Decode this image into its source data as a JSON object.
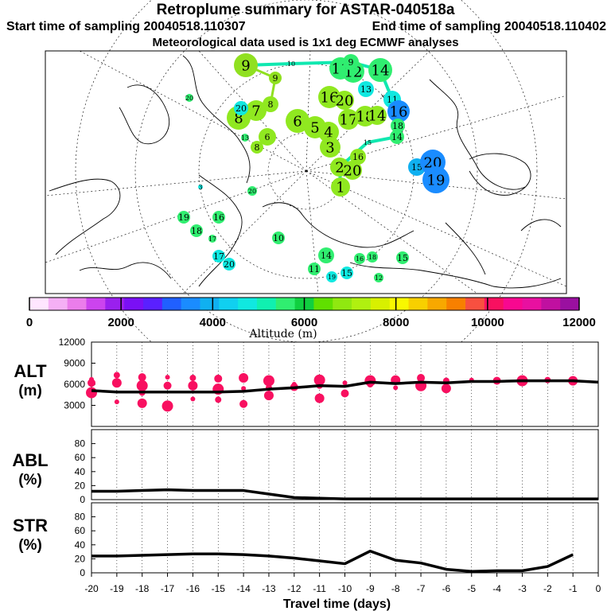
{
  "header": {
    "title": "Retroplume summary for ASTAR-040518a",
    "start": "Start time of sampling 20040518.110307",
    "end": "End time of sampling 20040518.110402",
    "met": "Meteorological data used is 1x1 deg ECMWF analyses"
  },
  "colorbar": {
    "label": "Altitude (m)",
    "ticks": [
      "0",
      "2000",
      "4000",
      "6000",
      "8000",
      "10000",
      "12000"
    ],
    "colors": [
      "#ffe6ff",
      "#f5b0f5",
      "#eb7deb",
      "#cc44ee",
      "#9a20ee",
      "#7a10f5",
      "#5a20ff",
      "#2060ff",
      "#1a8cff",
      "#10b0f0",
      "#10d0f0",
      "#10e8e0",
      "#10f0b0",
      "#30ee70",
      "#10d040",
      "#60e000",
      "#90e810",
      "#b0f010",
      "#d8f000",
      "#f8f800",
      "#f8d000",
      "#f8a800",
      "#f88000",
      "#f85040",
      "#f81060",
      "#f80890",
      "#e810a0",
      "#c010a0",
      "#9a10a0"
    ]
  },
  "map": {
    "markers": [
      {
        "n": "9",
        "c": "#90e020",
        "r": 15
      },
      {
        "n": "10",
        "c": "#ffffff",
        "r": 0
      },
      {
        "n": "9",
        "c": "#90e020",
        "r": 8
      },
      {
        "n": "11",
        "c": "#30ee70",
        "r": 14
      },
      {
        "n": "12",
        "c": "#30ee70",
        "r": 14
      },
      {
        "n": "9",
        "c": "#30ee70",
        "r": 10
      },
      {
        "n": "14",
        "c": "#30ee70",
        "r": 15
      },
      {
        "n": "13",
        "c": "#10e8e0",
        "r": 10
      },
      {
        "n": "16",
        "c": "#90e820",
        "r": 14
      },
      {
        "n": "20",
        "c": "#90e820",
        "r": 12
      },
      {
        "n": "11",
        "c": "#10e8e0",
        "r": 11
      },
      {
        "n": "16",
        "c": "#1a8cff",
        "r": 14
      },
      {
        "n": "8",
        "c": "#90e820",
        "r": 15
      },
      {
        "n": "7",
        "c": "#90e820",
        "r": 13
      },
      {
        "n": "8",
        "c": "#90e820",
        "r": 10
      },
      {
        "n": "6",
        "c": "#90e820",
        "r": 15
      },
      {
        "n": "5",
        "c": "#90e820",
        "r": 14
      },
      {
        "n": "4",
        "c": "#90e820",
        "r": 13
      },
      {
        "n": "17",
        "c": "#90e820",
        "r": 13
      },
      {
        "n": "18",
        "c": "#90e820",
        "r": 13
      },
      {
        "n": "14",
        "c": "#90e820",
        "r": 12
      },
      {
        "n": "18",
        "c": "#30ee70",
        "r": 9
      },
      {
        "n": "14",
        "c": "#30ee70",
        "r": 9
      },
      {
        "n": "6",
        "c": "#90e820",
        "r": 11
      },
      {
        "n": "8",
        "c": "#90e820",
        "r": 8
      },
      {
        "n": "3",
        "c": "#90e820",
        "r": 13
      },
      {
        "n": "15",
        "c": "#ffffff",
        "r": 0
      },
      {
        "n": "16",
        "c": "#90e820",
        "r": 10
      },
      {
        "n": "2",
        "c": "#90e820",
        "r": 12
      },
      {
        "n": "20",
        "c": "#90e820",
        "r": 12
      },
      {
        "n": "1",
        "c": "#90e820",
        "r": 12
      },
      {
        "n": "15",
        "c": "#10b0f0",
        "r": 11
      },
      {
        "n": "20",
        "c": "#1a8cff",
        "r": 16
      },
      {
        "n": "19",
        "c": "#1a8cff",
        "r": 17
      },
      {
        "n": "20",
        "c": "#30ee70",
        "r": 5
      },
      {
        "n": "3",
        "c": "#10e8e0",
        "r": 3
      },
      {
        "n": "20",
        "c": "#30ee70",
        "r": 6
      },
      {
        "n": "19",
        "c": "#30ee70",
        "r": 8
      },
      {
        "n": "18",
        "c": "#30ee70",
        "r": 8
      },
      {
        "n": "17",
        "c": "#30ee70",
        "r": 5
      },
      {
        "n": "16",
        "c": "#30ee70",
        "r": 8
      },
      {
        "n": "10",
        "c": "#30ee70",
        "r": 8
      },
      {
        "n": "17",
        "c": "#10e8e0",
        "r": 8
      },
      {
        "n": "20",
        "c": "#10e8e0",
        "r": 8
      },
      {
        "n": "14",
        "c": "#30ee70",
        "r": 10
      },
      {
        "n": "11",
        "c": "#30ee70",
        "r": 8
      },
      {
        "n": "19",
        "c": "#10e8e0",
        "r": 7
      },
      {
        "n": "16",
        "c": "#30ee70",
        "r": 7
      },
      {
        "n": "15",
        "c": "#10e8e0",
        "r": 8
      },
      {
        "n": "18",
        "c": "#30ee70",
        "r": 7
      },
      {
        "n": "15",
        "c": "#30ee70",
        "r": 8
      },
      {
        "n": "12",
        "c": "#30ee70",
        "r": 6
      },
      {
        "n": "20",
        "c": "#10e8e0",
        "r": 9
      },
      {
        "n": "13",
        "c": "#30ee70",
        "r": 5
      }
    ]
  },
  "chart_data": [
    {
      "type": "scatter+line",
      "panel": "ALT",
      "ylabel": "ALT (m)",
      "ylim": [
        0,
        12000
      ],
      "yticks": [
        "12000",
        "9000",
        "6000",
        "3000"
      ],
      "x": [
        -20,
        -19,
        -18,
        -17,
        -16,
        -15,
        -14,
        -13,
        -12,
        -11,
        -10,
        -9,
        -8,
        -7,
        -6,
        -5,
        -4,
        -3,
        -2,
        -1,
        0
      ],
      "line": [
        5100,
        4900,
        4900,
        4900,
        4900,
        4900,
        5000,
        5300,
        5500,
        5800,
        5700,
        6300,
        6100,
        6300,
        6200,
        6400,
        6400,
        6500,
        6500,
        6500,
        6300
      ],
      "points": [
        {
          "x": -20,
          "y": 6700
        },
        {
          "x": -20,
          "y": 6200
        },
        {
          "x": -20,
          "y": 4800
        },
        {
          "x": -19,
          "y": 7300
        },
        {
          "x": -19,
          "y": 6200
        },
        {
          "x": -19,
          "y": 3500
        },
        {
          "x": -18,
          "y": 7000
        },
        {
          "x": -18,
          "y": 5800
        },
        {
          "x": -18,
          "y": 4800
        },
        {
          "x": -18,
          "y": 3300
        },
        {
          "x": -17,
          "y": 7000
        },
        {
          "x": -17,
          "y": 5800
        },
        {
          "x": -17,
          "y": 2900
        },
        {
          "x": -16,
          "y": 6900
        },
        {
          "x": -16,
          "y": 5800
        },
        {
          "x": -16,
          "y": 3900
        },
        {
          "x": -15,
          "y": 6800
        },
        {
          "x": -15,
          "y": 5300
        },
        {
          "x": -15,
          "y": 3800
        },
        {
          "x": -14,
          "y": 6900
        },
        {
          "x": -14,
          "y": 5400
        },
        {
          "x": -14,
          "y": 3200
        },
        {
          "x": -13,
          "y": 6500
        },
        {
          "x": -13,
          "y": 5500
        },
        {
          "x": -13,
          "y": 4400
        },
        {
          "x": -12,
          "y": 6000
        },
        {
          "x": -12,
          "y": 5600
        },
        {
          "x": -11,
          "y": 6600
        },
        {
          "x": -11,
          "y": 5800
        },
        {
          "x": -11,
          "y": 4000
        },
        {
          "x": -10,
          "y": 6200
        },
        {
          "x": -10,
          "y": 4700
        },
        {
          "x": -9,
          "y": 6500
        },
        {
          "x": -9,
          "y": 6000
        },
        {
          "x": -8,
          "y": 6600
        },
        {
          "x": -8,
          "y": 5500
        },
        {
          "x": -7,
          "y": 6900
        },
        {
          "x": -7,
          "y": 5800
        },
        {
          "x": -6,
          "y": 6500
        },
        {
          "x": -6,
          "y": 5400
        },
        {
          "x": -5,
          "y": 6600
        },
        {
          "x": -4,
          "y": 6500
        },
        {
          "x": -3,
          "y": 6500
        },
        {
          "x": -2,
          "y": 6600
        },
        {
          "x": -1,
          "y": 6500
        }
      ]
    },
    {
      "type": "line",
      "panel": "ABL",
      "ylabel": "ABL (%)",
      "ylim": [
        0,
        100
      ],
      "yticks": [
        "80",
        "60",
        "40",
        "20",
        "0"
      ],
      "x": [
        -20,
        -19,
        -18,
        -17,
        -16,
        -15,
        -14,
        -13,
        -12,
        -11,
        -10,
        -9,
        -8,
        -7,
        -6,
        -5,
        -4,
        -3,
        -2,
        -1,
        0
      ],
      "values": [
        12,
        12,
        13,
        14,
        13,
        13,
        13,
        8,
        3,
        2,
        1,
        1,
        1,
        1,
        1,
        1,
        1,
        1,
        1,
        1,
        1
      ]
    },
    {
      "type": "line",
      "panel": "STR",
      "ylabel": "STR (%)",
      "ylim": [
        0,
        100
      ],
      "yticks": [
        "80",
        "60",
        "40",
        "20",
        "0"
      ],
      "x": [
        -20,
        -19,
        -18,
        -17,
        -16,
        -15,
        -14,
        -13,
        -12,
        -11,
        -10,
        -9,
        -8,
        -7,
        -6,
        -5,
        -4,
        -3,
        -2,
        -1
      ],
      "values": [
        24,
        24,
        25,
        26,
        27,
        27,
        26,
        24,
        21,
        17,
        13,
        31,
        18,
        14,
        5,
        2,
        3,
        3,
        9,
        26
      ],
      "xlabel": "Travel time (days)",
      "xticks": [
        "-20",
        "-19",
        "-18",
        "-17",
        "-16",
        "-15",
        "-14",
        "-13",
        "-12",
        "-11",
        "-10",
        "-9",
        "-8",
        "-7",
        "-6",
        "-5",
        "-4",
        "-3",
        "-2",
        "-1",
        "0"
      ]
    }
  ]
}
